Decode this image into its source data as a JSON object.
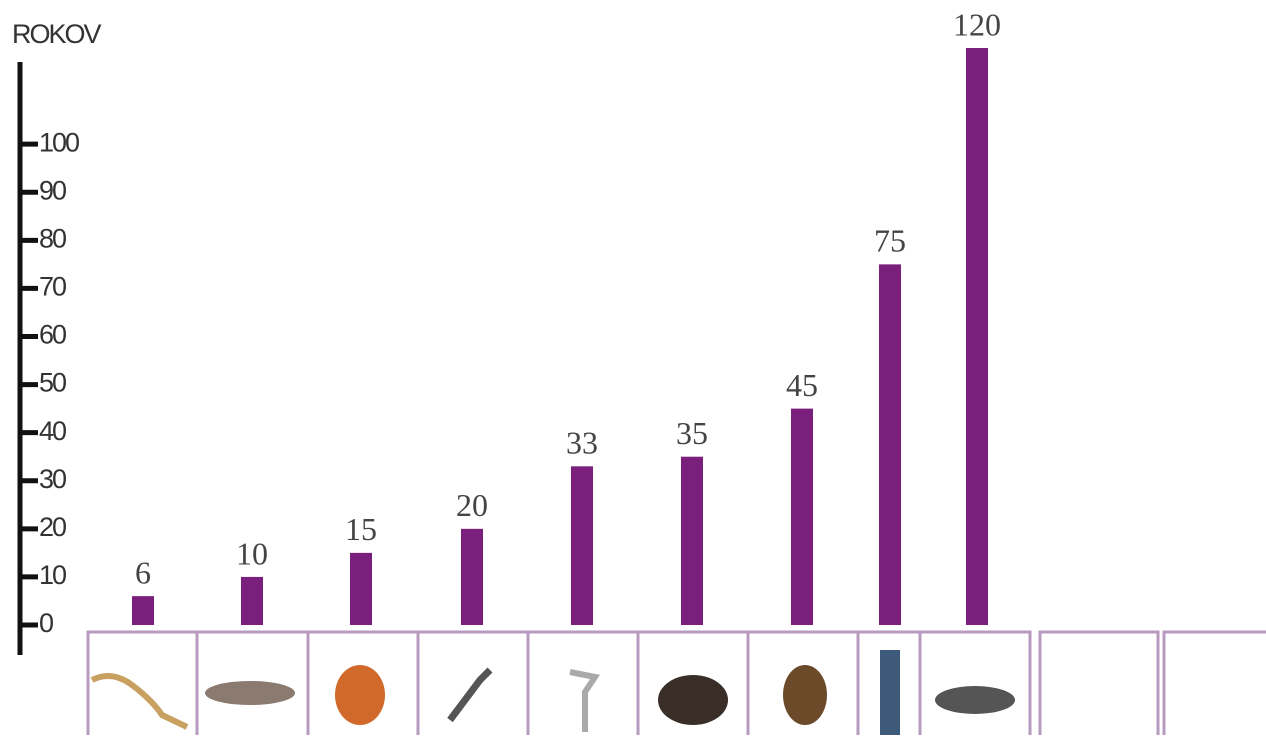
{
  "chart_data": {
    "type": "bar",
    "ylabel": "ROKOV",
    "categories": [
      null,
      null,
      null,
      null,
      null,
      null,
      null,
      null,
      null
    ],
    "values": [
      6,
      10,
      15,
      20,
      33,
      35,
      45,
      75,
      120
    ],
    "color": "#7a1f7c",
    "ylim": [
      0,
      120
    ],
    "yticks": [
      0,
      10,
      20,
      30,
      40,
      50,
      60,
      70,
      80,
      90,
      100
    ]
  }
}
